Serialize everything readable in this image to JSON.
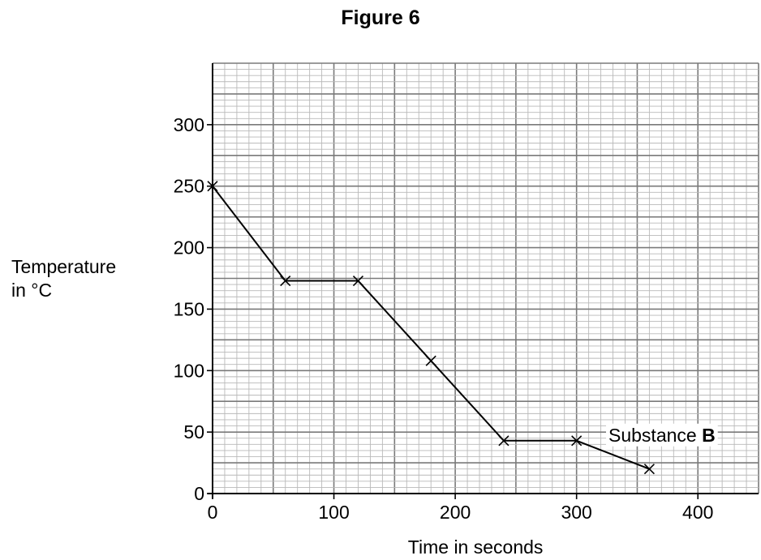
{
  "figure_title": "Figure 6",
  "chart_data": {
    "type": "line",
    "title": "Figure 6",
    "xlabel": "Time in seconds",
    "ylabel_lines": [
      "Temperature",
      "in °C"
    ],
    "xlim": [
      0,
      450
    ],
    "ylim": [
      0,
      350
    ],
    "x_ticks": [
      0,
      100,
      200,
      300,
      400
    ],
    "y_ticks": [
      0,
      50,
      100,
      150,
      200,
      250,
      300
    ],
    "grid": true,
    "marker": "x",
    "series": [
      {
        "name": "Substance B",
        "x": [
          0,
          60,
          120,
          180,
          240,
          300,
          360
        ],
        "y": [
          250,
          173,
          173,
          108,
          43,
          43,
          20
        ]
      }
    ],
    "annotation": {
      "text_prefix": "Substance ",
      "text_bold": "B"
    }
  }
}
